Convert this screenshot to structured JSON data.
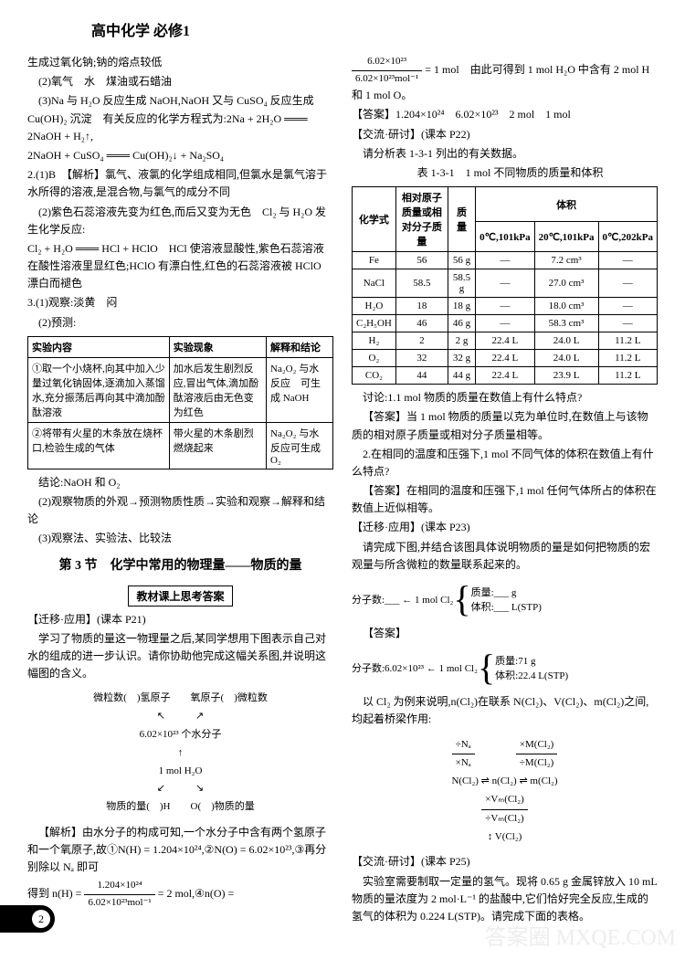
{
  "header": "高中化学 必修1",
  "page_num": "2",
  "left": {
    "l1": "生成过氧化钠;钠的熔点较低",
    "l2": "(2)氧气　水　煤油或石蜡油",
    "l3": "(3)Na 与 H₂O 反应生成 NaOH,NaOH 又与 CuSO₄ 反应生成 Cu(OH)₂ 沉淀　有关反应的化学方程式为:2Na + 2H₂O ═══ 2NaOH + H₂↑,",
    "l4": "2NaOH + CuSO₄ ═══ Cu(OH)₂↓ + Na₂SO₄",
    "q2_1": "2.(1)B　【解析】氯气、液氯的化学组成相同,但氯水是氯气溶于水所得的溶液,是混合物,与氯气的成分不同",
    "q2_2": "(2)紫色石蕊溶液先变为红色,而后又变为无色　Cl₂ 与 H₂O 发生化学反应:",
    "q2_3": "Cl₂ + H₂O ═══ HCl + HClO　HCl 使溶液显酸性,紫色石蕊溶液在酸性溶液里显红色;HClO 有漂白性,红色的石蕊溶液被 HClO 漂白而褪色",
    "q3_1": "3.(1)观察:淡黄　闷",
    "q3_2": "(2)预测:",
    "table1_h1": "实验内容",
    "table1_h2": "实验现象",
    "table1_h3": "解释和结论",
    "table1_r1c1": "①取一个小烧杯,向其中加入少量过氧化钠固体,逐滴加入蒸馏水,充分振荡后再向其中滴加酚酞溶液",
    "table1_r1c2": "加水后发生剧烈反应,冒出气体,滴加酚酞溶液后由无色变为红色",
    "table1_r1c3": "Na₂O₂ 与水反应　可生成 NaOH",
    "table1_r2c1": "②将带有火星的木条放在烧杯口,检验生成的气体",
    "table1_r2c2": "带火星的木条剧烈燃烧起来",
    "table1_r2c3": "Na₂O₂ 与水反应可生成 O₂",
    "conclusion": "结论:NaOH 和 O₂",
    "q3_3": "(2)观察物质的外观→预测物质性质→实验和观察→解释和结论",
    "q3_4": "(3)观察法、实验法、比较法",
    "section_title": "第 3 节　化学中常用的物理量——物质的量",
    "box_title": "教材课上思考答案",
    "migrate_title": "【迁移·应用】(课本 P21)",
    "migrate_text": "学习了物质的量这一物理量之后,某同学想用下图表示自己对水的组成的进一步认识。请你协助他完成这幅关系图,并说明这幅图的含义。",
    "diag_top_l": "微粒数(　)氢原子",
    "diag_top_r": "氧原子(　)微粒数",
    "diag_mid": "6.02×10²³ 个水分子",
    "diag_mid2": "1 mol H₂O",
    "diag_bot_l": "物质的量(　)H",
    "diag_bot_r": "O(　)物质的量",
    "analysis": "【解析】由水分子的构成可知,一个水分子中含有两个氢原子和一个氧原子,故①N(H) = 1.204×10²⁴,②N(O) = 6.02×10²³,③再分别除以 Nₐ 即可",
    "formula_pre": "得到 n(H) = ",
    "formula_num": "1.204×10²⁴",
    "formula_den": "6.02×10²³mol⁻¹",
    "formula_post": " = 2 mol,④n(O) ="
  },
  "right": {
    "r1_num": "6.02×10²³",
    "r1_den": "6.02×10²³mol⁻¹",
    "r1_post": " = 1 mol　由此可得到 1 mol H₂O 中含有 2 mol H 和 1 mol O。",
    "r2": "【答案】1.204×10²⁴　6.02×10²³　2 mol　1 mol",
    "r3": "【交流·研讨】(课本 P22)",
    "r4": "请分析表 1-3-1 列出的有关数据。",
    "table2_title": "表 1-3-1　1 mol 不同物质的质量和体积",
    "t2_h1": "化学式",
    "t2_h2": "相对原子质量或相对分子质量",
    "t2_h3": "质量",
    "t2_h4": "体积",
    "t2_h4a": "0℃,101kPa",
    "t2_h4b": "20℃,101kPa",
    "t2_h4c": "0℃,202kPa",
    "t2_rows": [
      [
        "Fe",
        "56",
        "56 g",
        "—",
        "7.2 cm³",
        "—"
      ],
      [
        "NaCl",
        "58.5",
        "58.5 g",
        "—",
        "27.0 cm³",
        "—"
      ],
      [
        "H₂O",
        "18",
        "18 g",
        "—",
        "18.0 cm³",
        "—"
      ],
      [
        "C₂H₅OH",
        "46",
        "46 g",
        "—",
        "58.3 cm³",
        "—"
      ],
      [
        "H₂",
        "2",
        "2 g",
        "22.4 L",
        "24.0 L",
        "11.2 L"
      ],
      [
        "O₂",
        "32",
        "32 g",
        "22.4 L",
        "24.0 L",
        "11.2 L"
      ],
      [
        "CO₂",
        "44",
        "44 g",
        "22.4 L",
        "23.9 L",
        "11.2 L"
      ]
    ],
    "discuss1": "讨论:1.1 mol 物质的质量在数值上有什么特点?",
    "ans1": "【答案】当 1 mol 物质的质量以克为单位时,在数值上与该物质的相对原子质量或相对分子质量相等。",
    "discuss2": "2.在相同的温度和压强下,1 mol 不同气体的体积在数值上有什么特点?",
    "ans2": "【答案】在相同的温度和压强下,1 mol 任何气体所占的体积在数值上近似相等。",
    "migrate2": "【迁移·应用】(课本 P23)",
    "migrate2_text": "请完成下图,并结合该图具体说明物质的量是如何把物质的宏观量与所含微粒的数量联系起来的。",
    "d2_mol": "分子数:___ ← 1 mol Cl₂",
    "d2_mass": "质量:___ g",
    "d2_vol": "体积:___ L(STP)",
    "ans3": "【答案】",
    "d3_mol": "分子数:6.02×10²³ ← 1 mol Cl₂",
    "d3_mass": "质量:71 g",
    "d3_vol": "体积:22.4 L(STP)",
    "explain": "以 Cl₂ 为例来说明,n(Cl₂)在联系 N(Cl₂)、V(Cl₂)、m(Cl₂)之间,均起着桥梁作用:",
    "eq1_a": "÷Nₐ",
    "eq1_b": "×Nₐ",
    "eq1_c": "×M(Cl₂)",
    "eq1_d": "÷M(Cl₂)",
    "eq2_a": "×Vₘ(Cl₂)",
    "eq2_b": "÷Vₘ(Cl₂)",
    "eq_line1": "N(Cl₂) ⇌ n(Cl₂) ⇌ m(Cl₂)",
    "eq_line2": "↕ V(Cl₂)",
    "exchange": "【交流·研讨】(课本 P25)",
    "exp_text": "实验室需要制取一定量的氢气。现将 0.65 g 金属锌放入 10 mL 物质的量浓度为 2 mol·L⁻¹ 的盐酸中,它们恰好完全反应,生成的氢气的体积为 0.224 L(STP)。请完成下面的表格。"
  },
  "watermark": "答案圈 MXQE.COM"
}
